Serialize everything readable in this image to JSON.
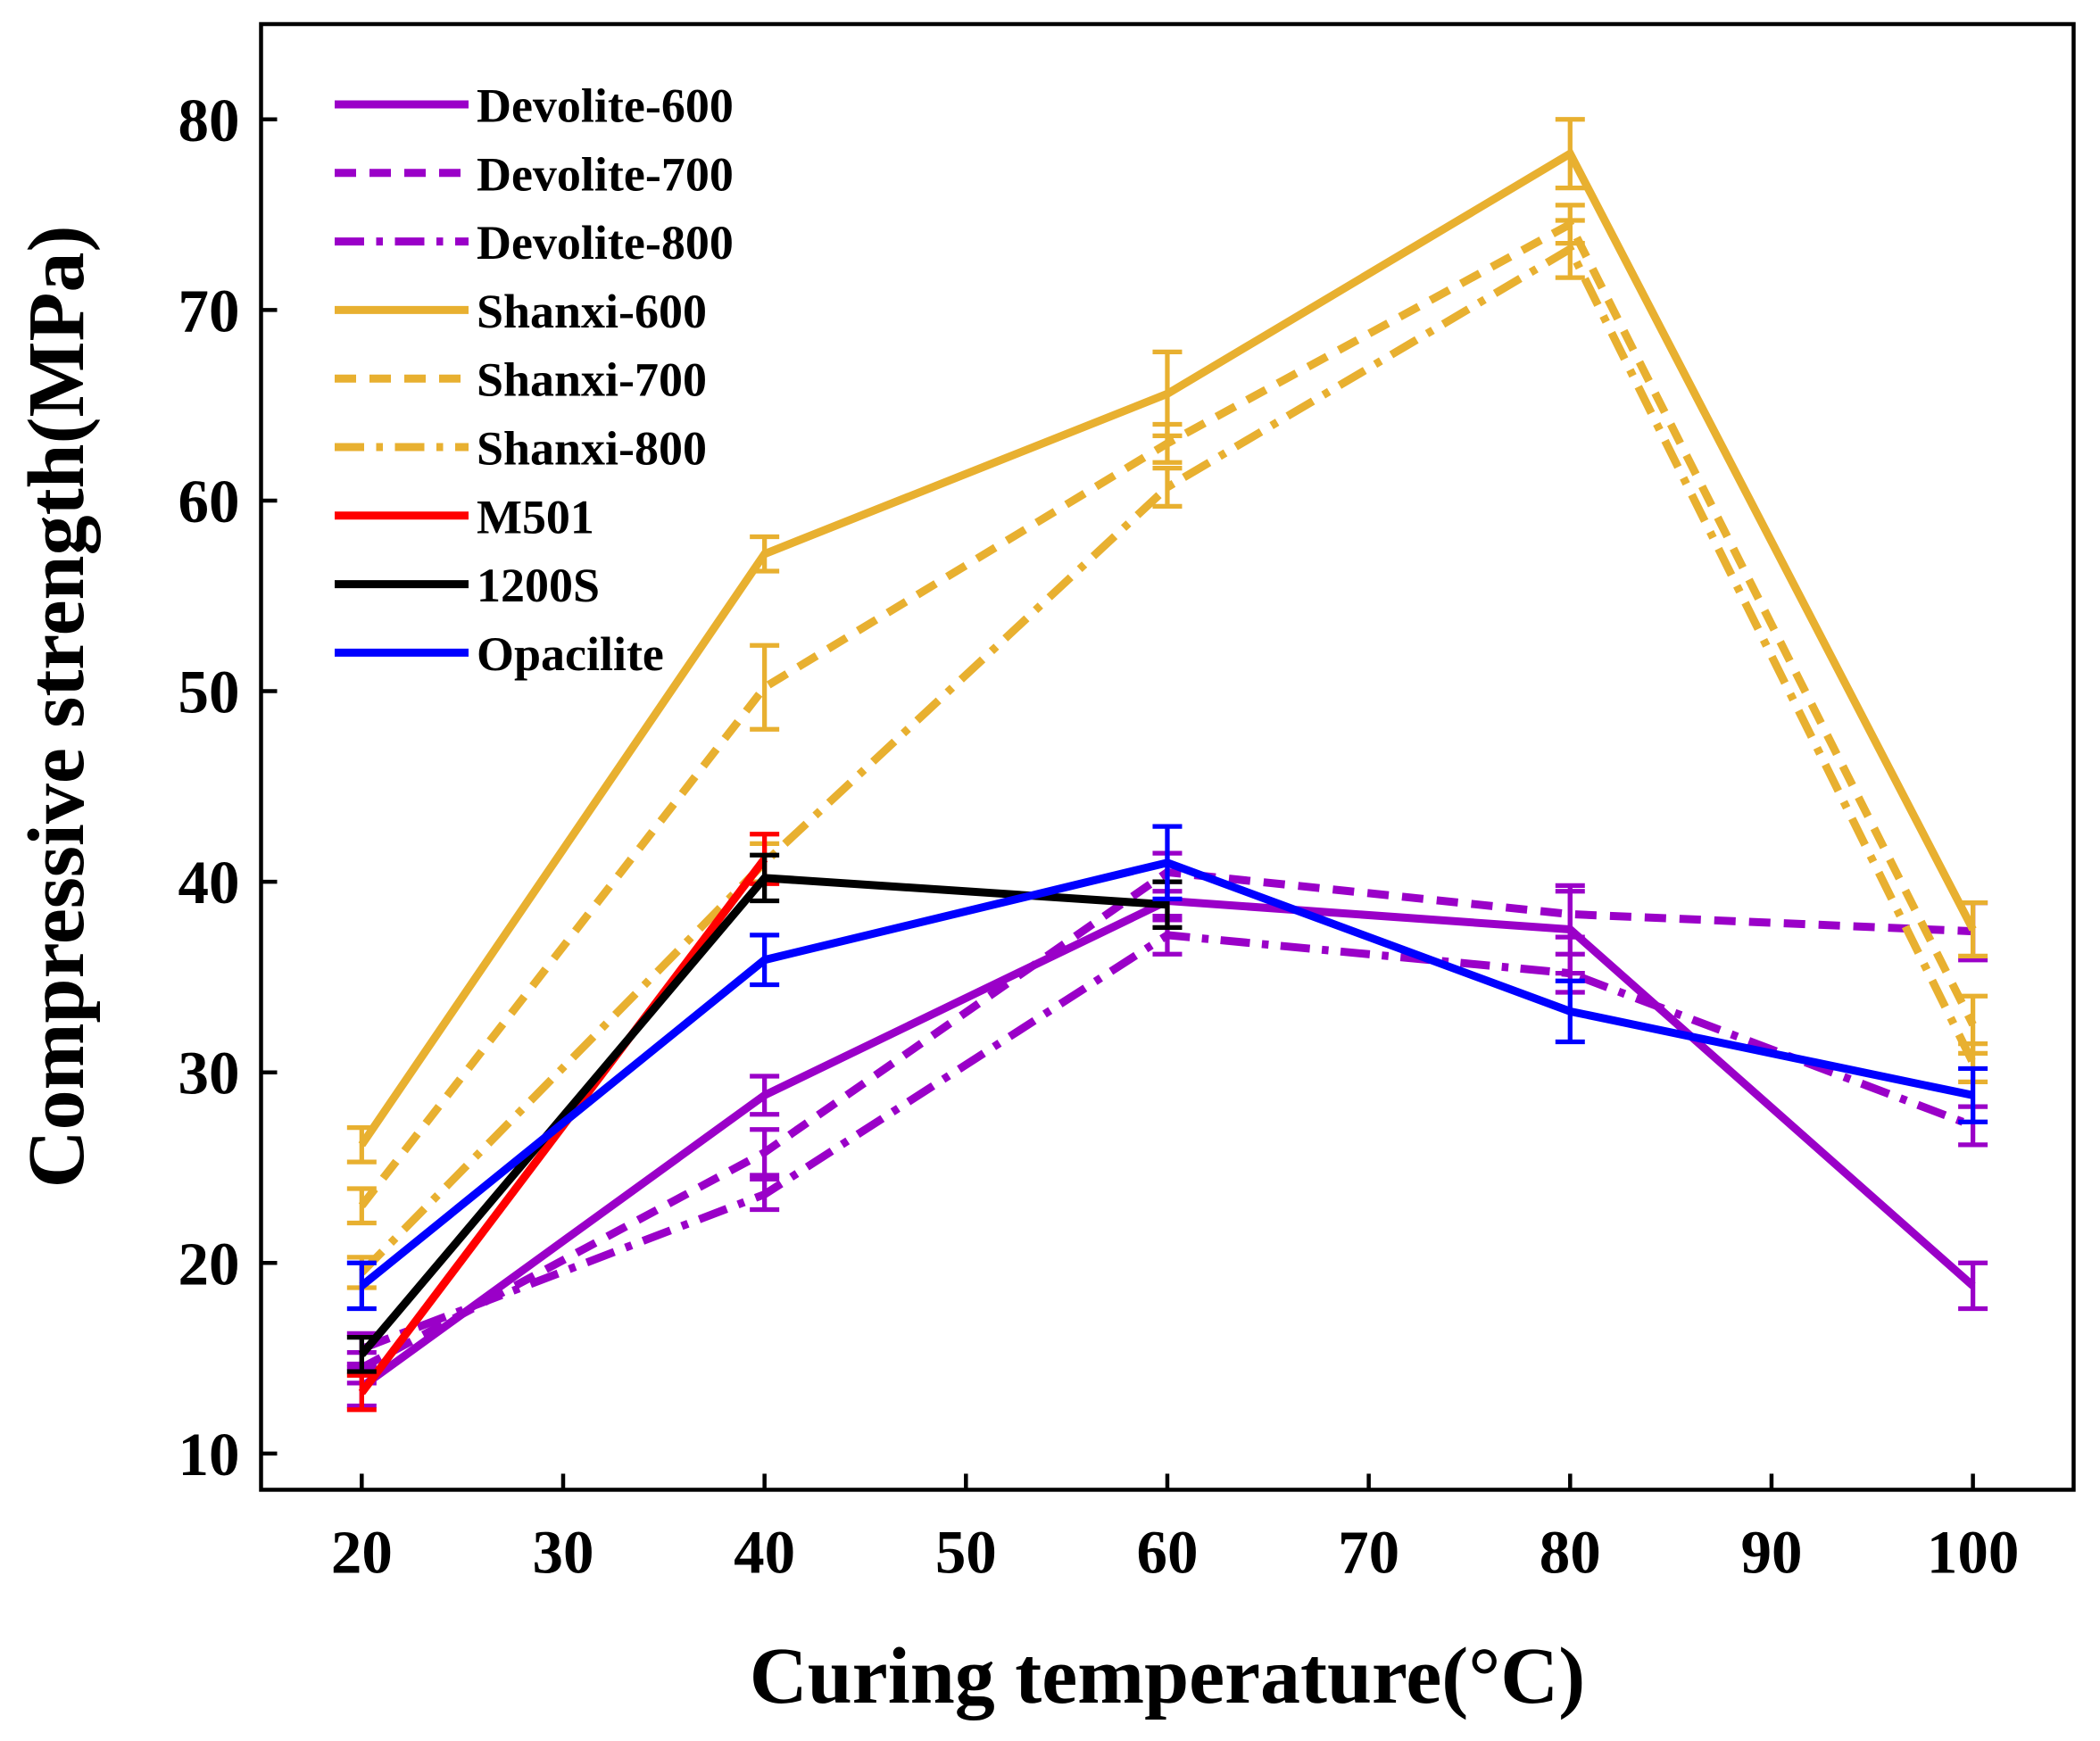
{
  "chart_data": {
    "type": "line",
    "title": "",
    "xlabel": "Curing temperature(°C)",
    "ylabel": "Compressive strength(MPa)",
    "xlim": [
      15,
      105
    ],
    "ylim": [
      8.1,
      85
    ],
    "xticks": [
      20,
      30,
      40,
      50,
      60,
      70,
      80,
      90,
      100
    ],
    "yticks": [
      10,
      20,
      30,
      40,
      50,
      60,
      70,
      80
    ],
    "grid": false,
    "legend_position": "top-left",
    "series": [
      {
        "name": "Devolite-600",
        "color": "#9A00C8",
        "dash": "solid",
        "x": [
          20,
          40,
          60,
          80,
          100
        ],
        "y": [
          13.5,
          28.8,
          39.0,
          37.5,
          18.8
        ],
        "err": [
          1.0,
          1.0,
          1.0,
          2.3,
          1.2
        ]
      },
      {
        "name": "Devolite-700",
        "color": "#9A00C8",
        "dash": "dash",
        "x": [
          20,
          40,
          60,
          80,
          100
        ],
        "y": [
          14.5,
          25.8,
          40.5,
          38.3,
          37.4
        ],
        "err": [
          0.8,
          1.2,
          1.0,
          1.2,
          1.5
        ]
      },
      {
        "name": "Devolite-800",
        "color": "#9A00C8",
        "dash": "dashdot",
        "x": [
          20,
          40,
          60,
          80,
          100
        ],
        "y": [
          15.5,
          23.6,
          37.2,
          35.2,
          27.2
        ],
        "err": [
          0.8,
          0.8,
          1.0,
          1.0,
          1.0
        ]
      },
      {
        "name": "Shanxi-600",
        "color": "#E8B030",
        "dash": "solid",
        "x": [
          20,
          40,
          60,
          80,
          100
        ],
        "y": [
          26.2,
          57.2,
          65.6,
          78.2,
          37.5
        ],
        "err": [
          0.9,
          0.9,
          2.2,
          1.8,
          1.4
        ]
      },
      {
        "name": "Shanxi-700",
        "color": "#E8B030",
        "dash": "dash",
        "x": [
          20,
          40,
          60,
          80,
          100
        ],
        "y": [
          23.0,
          50.2,
          63.0,
          74.5,
          32.5
        ],
        "err": [
          0.9,
          2.2,
          1.0,
          1.0,
          1.5
        ]
      },
      {
        "name": "Shanxi-800",
        "color": "#E8B030",
        "dash": "dashdot",
        "x": [
          20,
          40,
          60,
          80,
          100
        ],
        "y": [
          19.5,
          41.0,
          60.7,
          73.2,
          30.5
        ],
        "err": [
          0.8,
          1.0,
          1.0,
          1.5,
          1.0
        ]
      },
      {
        "name": "M501",
        "color": "#FF0000",
        "dash": "solid",
        "x": [
          20,
          40
        ],
        "y": [
          13.2,
          41.2
        ],
        "err": [
          0.9,
          1.3
        ]
      },
      {
        "name": "1200S",
        "color": "#000000",
        "dash": "solid",
        "x": [
          20,
          40,
          60
        ],
        "y": [
          15.2,
          40.2,
          38.8
        ],
        "err": [
          0.9,
          1.2,
          1.2
        ]
      },
      {
        "name": "Opacilite",
        "color": "#0000FF",
        "dash": "solid",
        "x": [
          20,
          40,
          60,
          80,
          100
        ],
        "y": [
          18.8,
          35.9,
          41.0,
          33.2,
          28.8
        ],
        "err": [
          1.2,
          1.3,
          1.9,
          1.6,
          1.4
        ]
      }
    ]
  }
}
